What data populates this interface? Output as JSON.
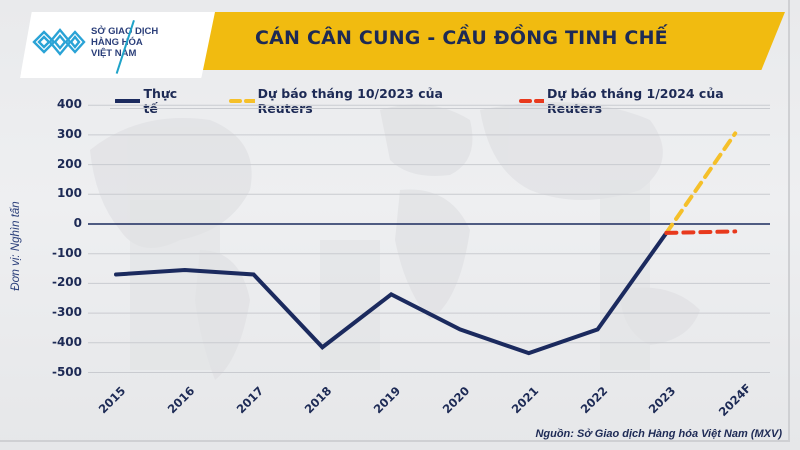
{
  "header": {
    "title": "CÁN CÂN CUNG - CẦU ĐỒNG TINH CHẾ",
    "logo": {
      "line1": "SỞ GIAO DỊCH",
      "line2": "HÀNG HÓA",
      "line3": "VIỆT NAM",
      "icon": "mxv-logo-icon"
    },
    "banner_color": "#f1bb10",
    "title_color": "#1d2a55"
  },
  "legend": [
    {
      "label": "Thực tế",
      "color": "#1b2a5e",
      "style": "solid"
    },
    {
      "label": "Dự báo tháng 10/2023 của Reuters",
      "color": "#f5c02a",
      "style": "dashed"
    },
    {
      "label": "Dự báo tháng 1/2024 của Reuters",
      "color": "#e8391d",
      "style": "dashed"
    }
  ],
  "y_axis_label": "Đơn vị: Nghìn tấn",
  "source": "Nguồn: Sở Giao dịch Hàng hóa Việt Nam (MXV)",
  "chart_data": {
    "type": "line",
    "title": "CÁN CÂN CUNG - CẦU ĐỒNG TINH CHẾ",
    "xlabel": "",
    "ylabel": "Đơn vị: Nghìn tấn",
    "categories": [
      "2015",
      "2016",
      "2017",
      "2018",
      "2019",
      "2020",
      "2021",
      "2022",
      "2023",
      "2024F"
    ],
    "yticks": [
      400,
      300,
      200,
      100,
      0,
      -100,
      -200,
      -300,
      -400,
      -500
    ],
    "ylim": [
      -500,
      400
    ],
    "grid": true,
    "legend_position": "top",
    "series": [
      {
        "name": "Thực tế",
        "color": "#1b2a5e",
        "style": "solid",
        "values": [
          -170,
          -155,
          -170,
          -415,
          -237,
          -355,
          -435,
          -355,
          -30,
          null
        ]
      },
      {
        "name": "Dự báo tháng 10/2023 của Reuters",
        "color": "#f5c02a",
        "style": "dashed",
        "values": [
          null,
          null,
          null,
          null,
          null,
          null,
          null,
          null,
          -30,
          305
        ]
      },
      {
        "name": "Dự báo tháng 1/2024 của Reuters",
        "color": "#e8391d",
        "style": "dashed",
        "values": [
          null,
          null,
          null,
          null,
          null,
          null,
          null,
          null,
          -30,
          -25
        ]
      }
    ]
  }
}
